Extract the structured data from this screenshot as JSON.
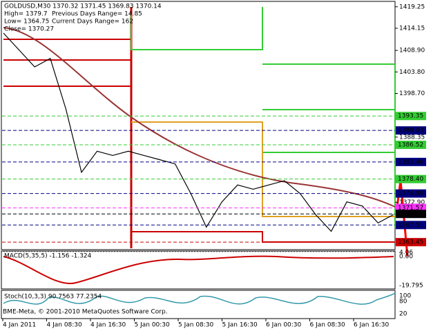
{
  "header": {
    "symbol_line": "GOLDUSD,M30  1370.32 1371.45 1369.83 1370.14",
    "high": "High= 1379.7",
    "prev_range": "Previous Days Range= 14.85",
    "low": "Low= 1364.75",
    "cur_range": "Current Days Range= 162",
    "close": "Close= 1370.27"
  },
  "price_axis": {
    "ylim": [
      1362.0,
      1420.2
    ],
    "ticks": [
      {
        "value": 1419.25,
        "label": "1419.25"
      },
      {
        "value": 1414.15,
        "label": "1414.15"
      },
      {
        "value": 1408.9,
        "label": "1408.90"
      },
      {
        "value": 1403.8,
        "label": "1403.80"
      },
      {
        "value": 1398.7,
        "label": "1398.70"
      },
      {
        "value": 1388.35,
        "label": "1388.35"
      },
      {
        "value": 1372.9,
        "label": "1372.90"
      }
    ],
    "levels": [
      {
        "value": 1393.35,
        "label": "1393.35",
        "color": "#33cc33"
      },
      {
        "value": 1389.93,
        "label": "1389.93",
        "color": "#000080"
      },
      {
        "value": 1386.52,
        "label": "1386.52",
        "color": "#33cc33"
      },
      {
        "value": 1382.46,
        "label": "1382.46",
        "color": "#000080"
      },
      {
        "value": 1378.4,
        "label": "1378.40",
        "color": "#33cc33"
      },
      {
        "value": 1374.98,
        "label": "1374.98",
        "color": "#000080"
      },
      {
        "value": 1371.57,
        "label": "1371.57",
        "color": "#ff33ff"
      },
      {
        "value": 1370.14,
        "label": "1370.14",
        "color": "#000000"
      },
      {
        "value": 1367.51,
        "label": "1367.51",
        "color": "#000080"
      },
      {
        "value": 1363.45,
        "label": "1363.45",
        "color": "#cc0000"
      }
    ]
  },
  "price_series": {
    "values": [
      1413,
      1409,
      1405,
      1407,
      1395,
      1380,
      1385,
      1384,
      1385,
      1384,
      1383,
      1382,
      1375,
      1367,
      1373,
      1377,
      1376,
      1377,
      1378,
      1375,
      1370,
      1366,
      1373,
      1372,
      1368,
      1370
    ]
  },
  "macd": {
    "label": "MACD(5,35,5) -1.156 -1.324",
    "ticks": [
      "4.06",
      "0.00",
      "-19.795"
    ]
  },
  "stoch": {
    "label": "Stoch(10,3,3) 90.7563 77.2354",
    "ticks": [
      "100",
      "80",
      "20"
    ]
  },
  "time_axis": [
    "4 Jan 2011",
    "4 Jan 08:30",
    "4 Jan 16:30",
    "5 Jan 00:30",
    "5 Jan 08:30",
    "5 Jan 16:30",
    "6 Jan 00:30",
    "6 Jan 08:30",
    "6 Jan 16:30"
  ],
  "footer": "BME-Meta, © 2001-2010 MetaQuotes Software Corp."
}
